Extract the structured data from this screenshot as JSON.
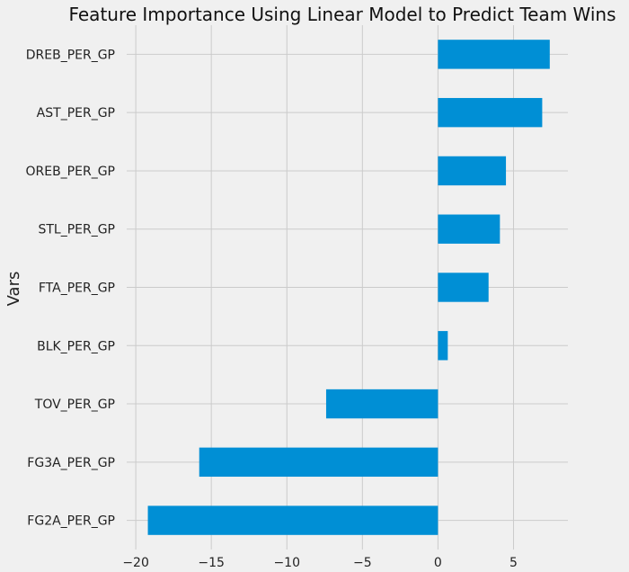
{
  "chart_data": {
    "type": "bar",
    "orientation": "horizontal",
    "title": "Feature Importance Using Linear Model to Predict Team Wins",
    "xlabel": "",
    "ylabel": "Vars",
    "categories": [
      "DREB_PER_GP",
      "AST_PER_GP",
      "OREB_PER_GP",
      "STL_PER_GP",
      "FTA_PER_GP",
      "BLK_PER_GP",
      "TOV_PER_GP",
      "FG3A_PER_GP",
      "FG2A_PER_GP"
    ],
    "values": [
      7.4,
      6.9,
      4.5,
      4.1,
      3.35,
      0.65,
      -7.4,
      -15.8,
      -19.2
    ],
    "xlim": [
      -20.6,
      8.6
    ],
    "xticks": [
      -20,
      -15,
      -10,
      -5,
      0,
      5
    ],
    "xtick_labels": [
      "−20",
      "−15",
      "−10",
      "−5",
      "0",
      "5"
    ],
    "grid": true,
    "colors": {
      "bar": "#008fd5",
      "background": "#f0f0f0",
      "grid": "#cbcbcb"
    }
  }
}
